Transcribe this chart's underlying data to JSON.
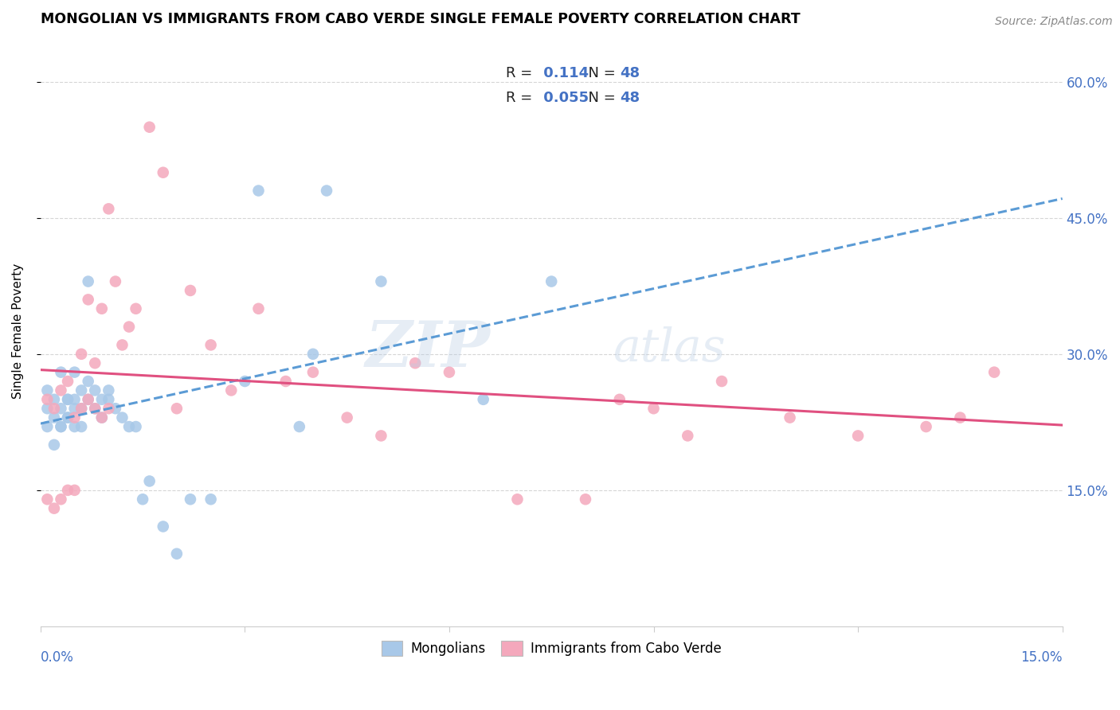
{
  "title": "MONGOLIAN VS IMMIGRANTS FROM CABO VERDE SINGLE FEMALE POVERTY CORRELATION CHART",
  "source": "Source: ZipAtlas.com",
  "ylabel": "Single Female Poverty",
  "legend_bottom": [
    "Mongolians",
    "Immigrants from Cabo Verde"
  ],
  "mongolian_R": "0.114",
  "mongolian_N": "48",
  "caboverde_R": "0.055",
  "caboverde_N": "48",
  "blue_color": "#a8c8e8",
  "pink_color": "#f4a8bc",
  "blue_line_color": "#5b9bd5",
  "pink_line_color": "#e05080",
  "axis_color": "#4472C4",
  "background_color": "#ffffff",
  "watermark_zip": "ZIP",
  "watermark_atlas": "atlas",
  "mongolian_x": [
    0.001,
    0.001,
    0.001,
    0.002,
    0.002,
    0.002,
    0.003,
    0.003,
    0.003,
    0.003,
    0.004,
    0.004,
    0.004,
    0.004,
    0.005,
    0.005,
    0.005,
    0.005,
    0.006,
    0.006,
    0.006,
    0.007,
    0.007,
    0.007,
    0.008,
    0.008,
    0.009,
    0.009,
    0.01,
    0.01,
    0.011,
    0.012,
    0.013,
    0.014,
    0.015,
    0.016,
    0.018,
    0.02,
    0.022,
    0.025,
    0.03,
    0.032,
    0.038,
    0.04,
    0.042,
    0.05,
    0.065,
    0.075
  ],
  "mongolian_y": [
    0.22,
    0.24,
    0.26,
    0.23,
    0.25,
    0.2,
    0.22,
    0.28,
    0.24,
    0.22,
    0.23,
    0.25,
    0.23,
    0.25,
    0.25,
    0.22,
    0.28,
    0.24,
    0.24,
    0.26,
    0.22,
    0.25,
    0.27,
    0.38,
    0.24,
    0.26,
    0.23,
    0.25,
    0.25,
    0.26,
    0.24,
    0.23,
    0.22,
    0.22,
    0.14,
    0.16,
    0.11,
    0.08,
    0.14,
    0.14,
    0.27,
    0.48,
    0.22,
    0.3,
    0.48,
    0.38,
    0.25,
    0.38
  ],
  "caboverde_x": [
    0.001,
    0.001,
    0.002,
    0.002,
    0.003,
    0.003,
    0.004,
    0.004,
    0.005,
    0.005,
    0.006,
    0.006,
    0.007,
    0.007,
    0.008,
    0.008,
    0.009,
    0.009,
    0.01,
    0.01,
    0.011,
    0.012,
    0.013,
    0.014,
    0.016,
    0.018,
    0.02,
    0.022,
    0.025,
    0.028,
    0.032,
    0.036,
    0.04,
    0.045,
    0.05,
    0.055,
    0.06,
    0.07,
    0.08,
    0.085,
    0.09,
    0.095,
    0.1,
    0.11,
    0.12,
    0.13,
    0.135,
    0.14
  ],
  "caboverde_y": [
    0.25,
    0.14,
    0.24,
    0.13,
    0.26,
    0.14,
    0.27,
    0.15,
    0.23,
    0.15,
    0.24,
    0.3,
    0.25,
    0.36,
    0.29,
    0.24,
    0.23,
    0.35,
    0.24,
    0.46,
    0.38,
    0.31,
    0.33,
    0.35,
    0.55,
    0.5,
    0.24,
    0.37,
    0.31,
    0.26,
    0.35,
    0.27,
    0.28,
    0.23,
    0.21,
    0.29,
    0.28,
    0.14,
    0.14,
    0.25,
    0.24,
    0.21,
    0.27,
    0.23,
    0.21,
    0.22,
    0.23,
    0.28
  ],
  "xlim": [
    0.0,
    0.15
  ],
  "ylim": [
    0.0,
    0.65
  ],
  "yticks": [
    0.15,
    0.3,
    0.45,
    0.6
  ],
  "ytick_labels": [
    "15.0%",
    "30.0%",
    "45.0%",
    "60.0%"
  ]
}
